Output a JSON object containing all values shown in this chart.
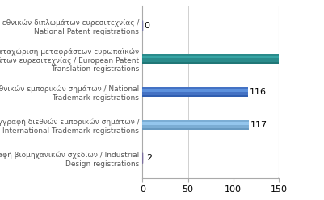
{
  "categories": [
    "Εγγραφή εθνικών διπλωμάτων ευρεσιτεχνίας /\nNational Patent registrations",
    "Καταχώριση μεταφράσεων ευρωπαϊκών\nδιπλωμάτων ευρεσιτεχνίας / European Patent\nTranslation registrations",
    "Εγγραφή εθνικών εμπορικών σημάτων / National\nTrademark registrations",
    "Εγγραφή διεθνών εμπορικών σημάτων /\nInternational Trademark registrations",
    "Εγγραφή βιομηχανικών σχεδίων / Industrial\nDesign registrations"
  ],
  "values": [
    0,
    160,
    116,
    117,
    2
  ],
  "bar_colors_main": [
    "#7b7baa",
    "#2a8b8b",
    "#4472c4",
    "#7badd4",
    "#7b6e9e"
  ],
  "bar_colors_light": [
    "#9b9bcc",
    "#3aabab",
    "#6499e4",
    "#9bcdf4",
    "#9b8ebe"
  ],
  "bar_colors_dark": [
    "#5b5b8a",
    "#1a6b6b",
    "#2452a4",
    "#5b8db4",
    "#5b4e7e"
  ],
  "value_labels": [
    "0",
    "",
    "116",
    "117",
    "2"
  ],
  "xlim": [
    0,
    150
  ],
  "xticks": [
    0,
    50,
    100,
    150
  ],
  "background_color": "#ffffff",
  "label_fontsize": 6.5,
  "tick_fontsize": 8,
  "grid_color": "#d0d0d0"
}
